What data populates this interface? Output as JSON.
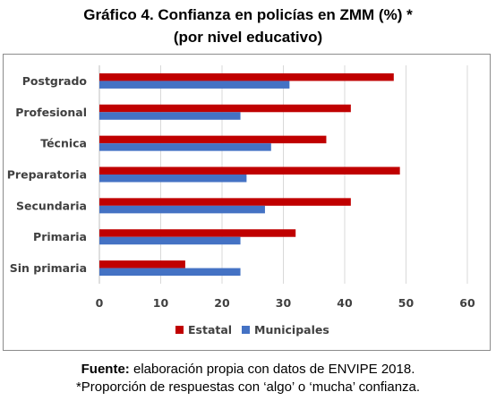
{
  "chart_data": {
    "type": "bar",
    "orientation": "horizontal",
    "title": "Gráfico 4. Confianza en policías en ZMM (%) *",
    "subtitle": "(por nivel educativo)",
    "categories": [
      "Postgrado",
      "Profesional",
      "Técnica",
      "Preparatoria",
      "Secundaria",
      "Primaria",
      "Sin primaria"
    ],
    "series": [
      {
        "name": "Estatal",
        "color": "#c00000",
        "values": [
          48,
          41,
          37,
          49,
          41,
          32,
          14
        ]
      },
      {
        "name": "Municipales",
        "color": "#4472c4",
        "values": [
          31,
          23,
          28,
          24,
          27,
          23,
          23
        ]
      }
    ],
    "xlim": [
      0,
      60
    ],
    "xticks": [
      0,
      10,
      20,
      30,
      40,
      50,
      60
    ],
    "grid": true,
    "legend": "bottom"
  },
  "footer": {
    "source_label": "Fuente:",
    "source_text": " elaboración propia con datos de ENVIPE 2018.",
    "note": "*Proporción de respuestas con ‘algo’ o ‘mucha’ confianza."
  }
}
